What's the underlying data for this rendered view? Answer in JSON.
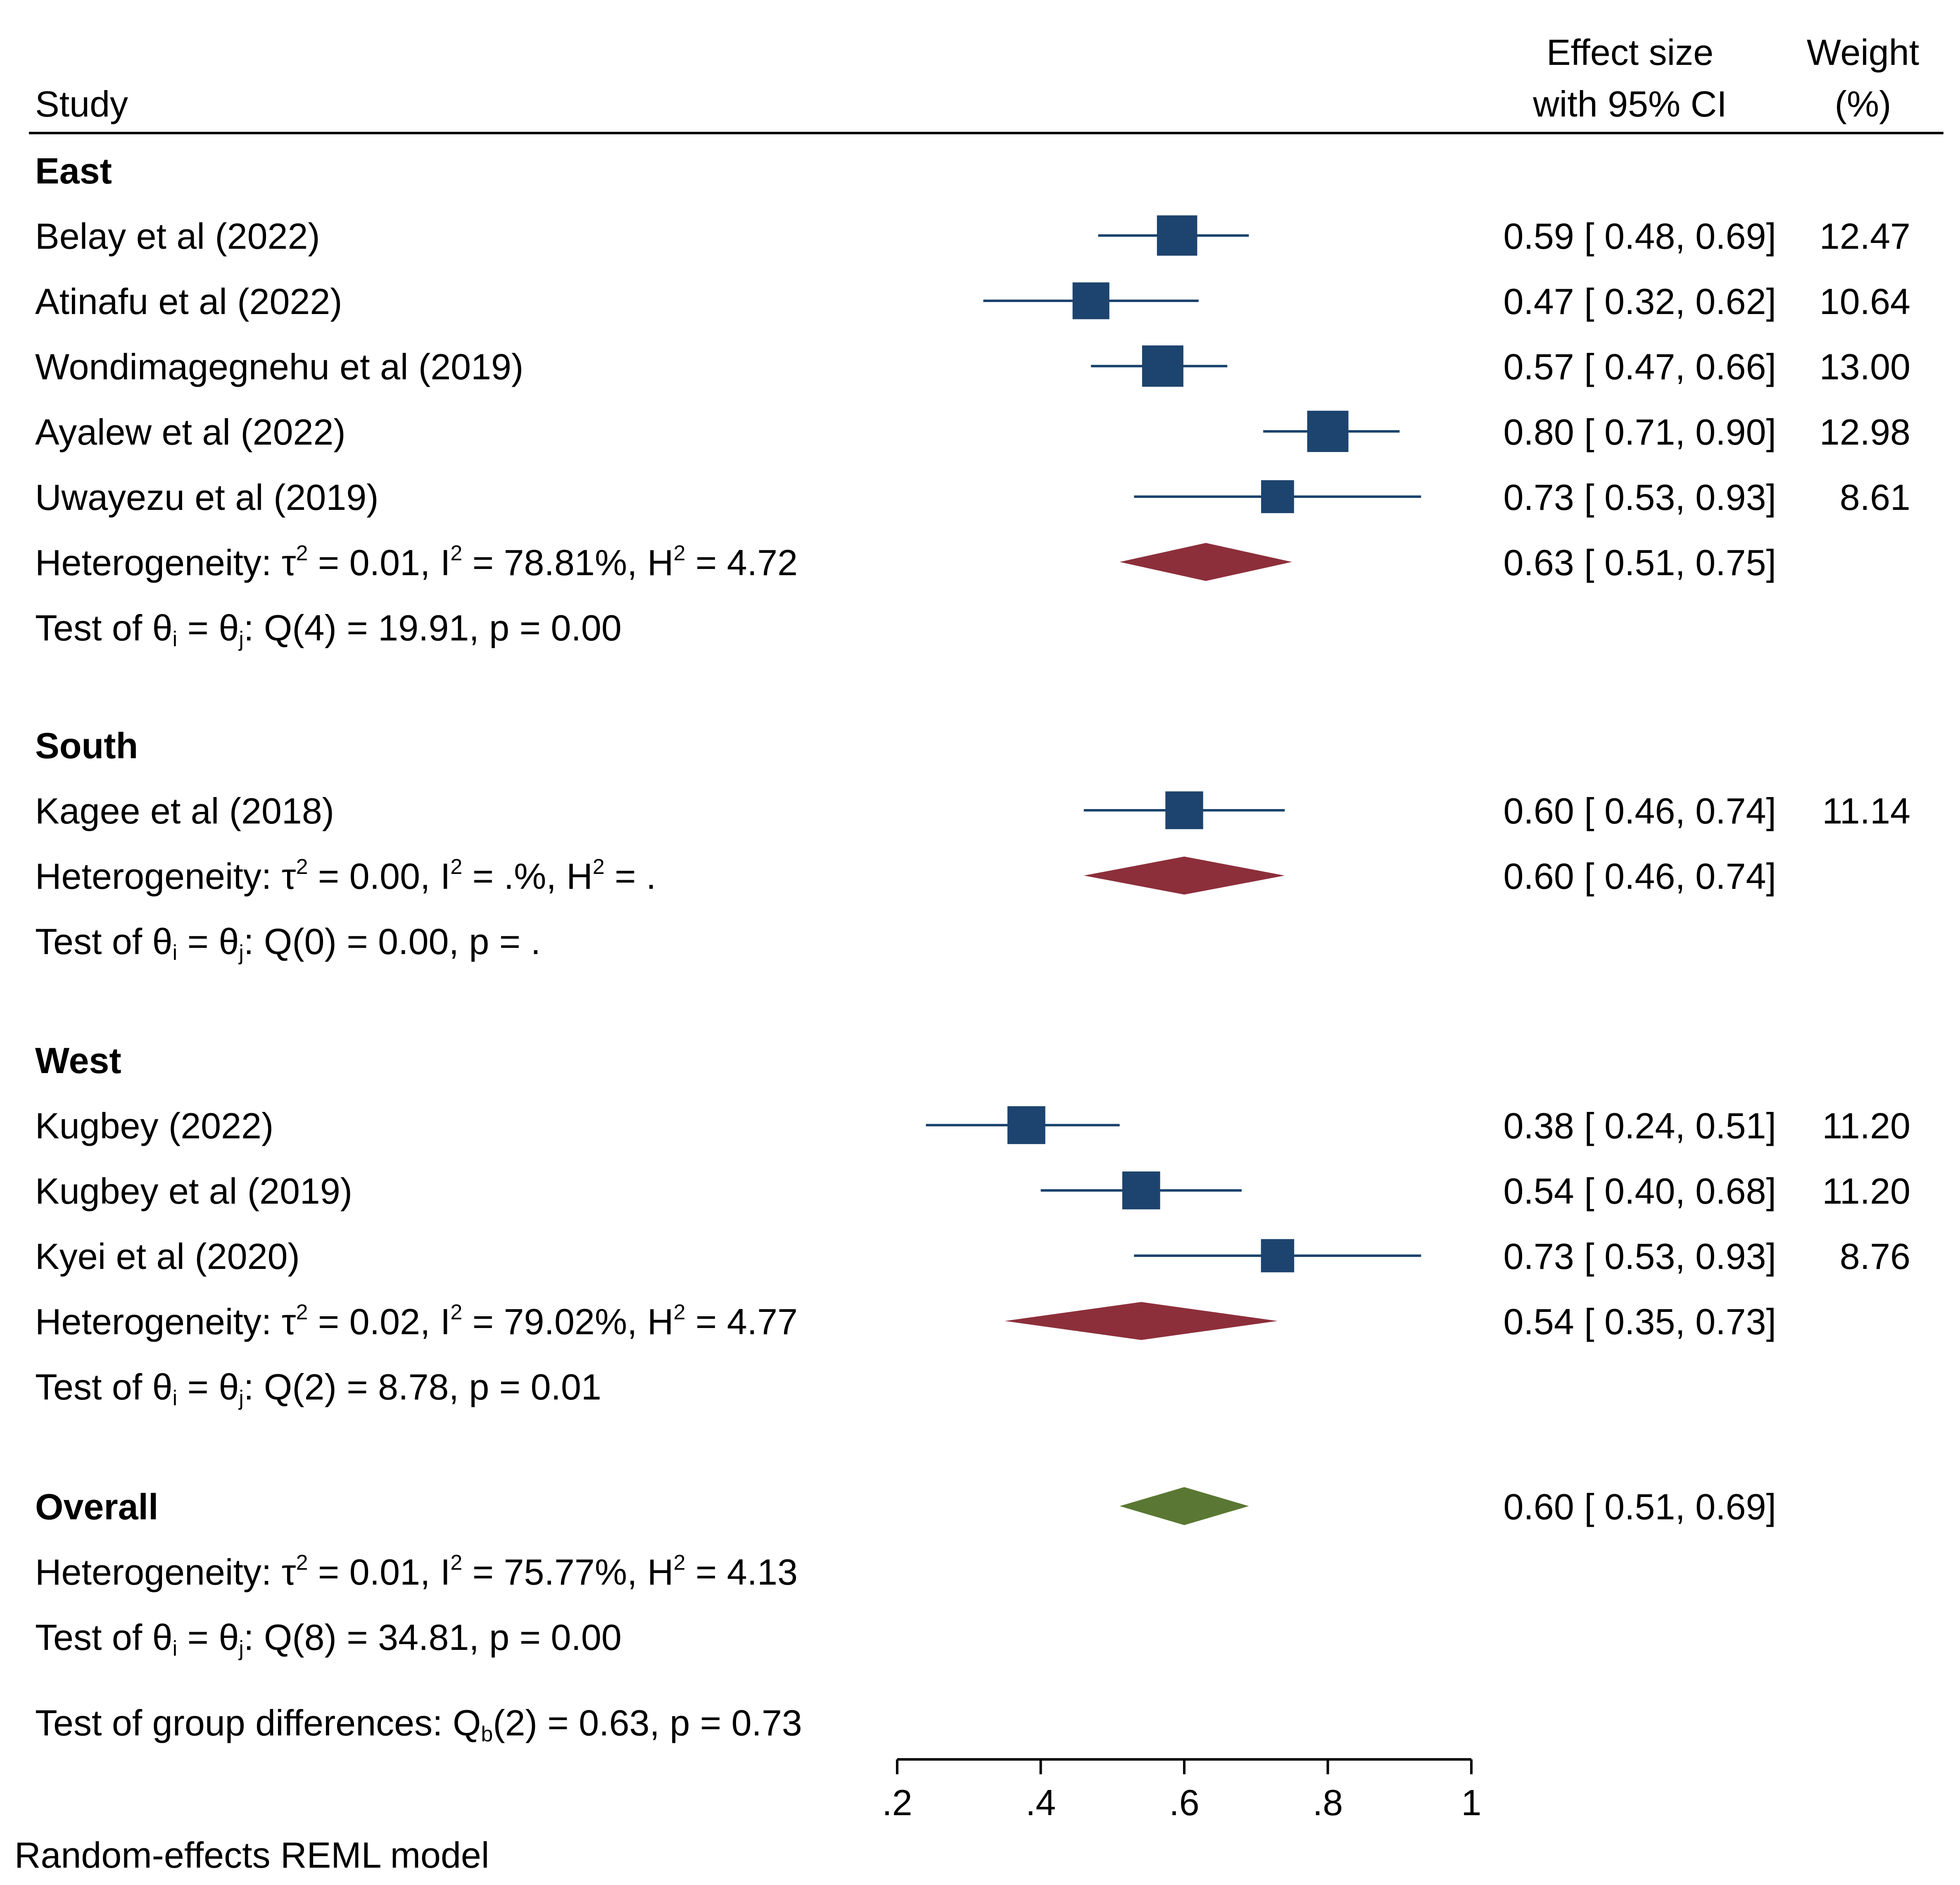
{
  "chart_data": {
    "type": "forest",
    "header": {
      "study": "Study",
      "effect_line1": "Effect size",
      "effect_line2": "with 95% CI",
      "weight_line1": "Weight",
      "weight_line2": "(%)"
    },
    "colors": {
      "marker": "#1d446e",
      "subgroup_diamond": "#8d2f3b",
      "overall_diamond": "#5a7833",
      "rule": "#000000"
    },
    "axis": {
      "xlim": [
        0.2,
        1.0
      ],
      "ticks": [
        0.2,
        0.4,
        0.6,
        0.8,
        1.0
      ],
      "tick_labels": [
        ".2",
        ".4",
        ".6",
        ".8",
        "1"
      ]
    },
    "groups": [
      {
        "name": "East",
        "studies": [
          {
            "label": "Belay et al (2022)",
            "es": 0.59,
            "lo": 0.48,
            "hi": 0.69,
            "ci_text": "0.59 [ 0.48,  0.69]",
            "weight": 12.47,
            "weight_text": "12.47"
          },
          {
            "label": "Atinafu et al (2022)",
            "es": 0.47,
            "lo": 0.32,
            "hi": 0.62,
            "ci_text": "0.47 [ 0.32,  0.62]",
            "weight": 10.64,
            "weight_text": "10.64"
          },
          {
            "label": "Wondimagegnehu et al (2019)",
            "es": 0.57,
            "lo": 0.47,
            "hi": 0.66,
            "ci_text": "0.57 [ 0.47,  0.66]",
            "weight": 13.0,
            "weight_text": "13.00"
          },
          {
            "label": "Ayalew et al (2022)",
            "es": 0.8,
            "lo": 0.71,
            "hi": 0.9,
            "ci_text": "0.80 [ 0.71,  0.90]",
            "weight": 12.98,
            "weight_text": "12.98"
          },
          {
            "label": "Uwayezu et al (2019)",
            "es": 0.73,
            "lo": 0.53,
            "hi": 0.93,
            "ci_text": "0.73 [ 0.53,  0.93]",
            "weight": 8.61,
            "weight_text": "8.61"
          }
        ],
        "pooled": {
          "es": 0.63,
          "lo": 0.51,
          "hi": 0.75,
          "ci_text": "0.63 [ 0.51,  0.75]"
        },
        "het": {
          "prefix": "Heterogeneity: τ",
          "tau_val": " = 0.01, I",
          "i2_val": " = 78.81%, H",
          "h2_val": " = 4.72"
        },
        "test": {
          "prefix": "Test of θ",
          "mid": " = θ",
          "rest": ": Q(4) = 19.91, p = 0.00"
        }
      },
      {
        "name": "South",
        "studies": [
          {
            "label": "Kagee et al (2018)",
            "es": 0.6,
            "lo": 0.46,
            "hi": 0.74,
            "ci_text": "0.60 [ 0.46,  0.74]",
            "weight": 11.14,
            "weight_text": "11.14"
          }
        ],
        "pooled": {
          "es": 0.6,
          "lo": 0.46,
          "hi": 0.74,
          "ci_text": "0.60 [ 0.46,  0.74]"
        },
        "het": {
          "prefix": "Heterogeneity: τ",
          "tau_val": " = 0.00, I",
          "i2_val": " = .%, H",
          "h2_val": " = ."
        },
        "test": {
          "prefix": "Test of θ",
          "mid": " = θ",
          "rest": ": Q(0) = 0.00, p = ."
        }
      },
      {
        "name": "West",
        "studies": [
          {
            "label": "Kugbey (2022)",
            "es": 0.38,
            "lo": 0.24,
            "hi": 0.51,
            "ci_text": "0.38 [ 0.24,  0.51]",
            "weight": 11.2,
            "weight_text": "11.20"
          },
          {
            "label": "Kugbey et al (2019)",
            "es": 0.54,
            "lo": 0.4,
            "hi": 0.68,
            "ci_text": "0.54 [ 0.40,  0.68]",
            "weight": 11.2,
            "weight_text": "11.20"
          },
          {
            "label": "Kyei et al (2020)",
            "es": 0.73,
            "lo": 0.53,
            "hi": 0.93,
            "ci_text": "0.73 [ 0.53,  0.93]",
            "weight": 8.76,
            "weight_text": "8.76"
          }
        ],
        "pooled": {
          "es": 0.54,
          "lo": 0.35,
          "hi": 0.73,
          "ci_text": "0.54 [ 0.35,  0.73]"
        },
        "het": {
          "prefix": "Heterogeneity: τ",
          "tau_val": " = 0.02, I",
          "i2_val": " = 79.02%, H",
          "h2_val": " = 4.77"
        },
        "test": {
          "prefix": "Test of θ",
          "mid": " = θ",
          "rest": ": Q(2) = 8.78, p = 0.01"
        }
      }
    ],
    "overall": {
      "name": "Overall",
      "es": 0.6,
      "lo": 0.51,
      "hi": 0.69,
      "ci_text": "0.60 [ 0.51,  0.69]",
      "het": {
        "prefix": "Heterogeneity: τ",
        "tau_val": " = 0.01, I",
        "i2_val": " = 75.77%, H",
        "h2_val": " = 4.13"
      },
      "test": {
        "prefix": "Test of θ",
        "mid": " = θ",
        "rest": ": Q(8) = 34.81, p = 0.00"
      }
    },
    "group_test": {
      "prefix": "Test of group differences: Q",
      "sub": "b",
      "rest": "(2) = 0.63, p = 0.73"
    },
    "het_sup": "2",
    "test_sub_i": "i",
    "test_sub_j": "j",
    "footnote": "Random-effects REML model"
  }
}
